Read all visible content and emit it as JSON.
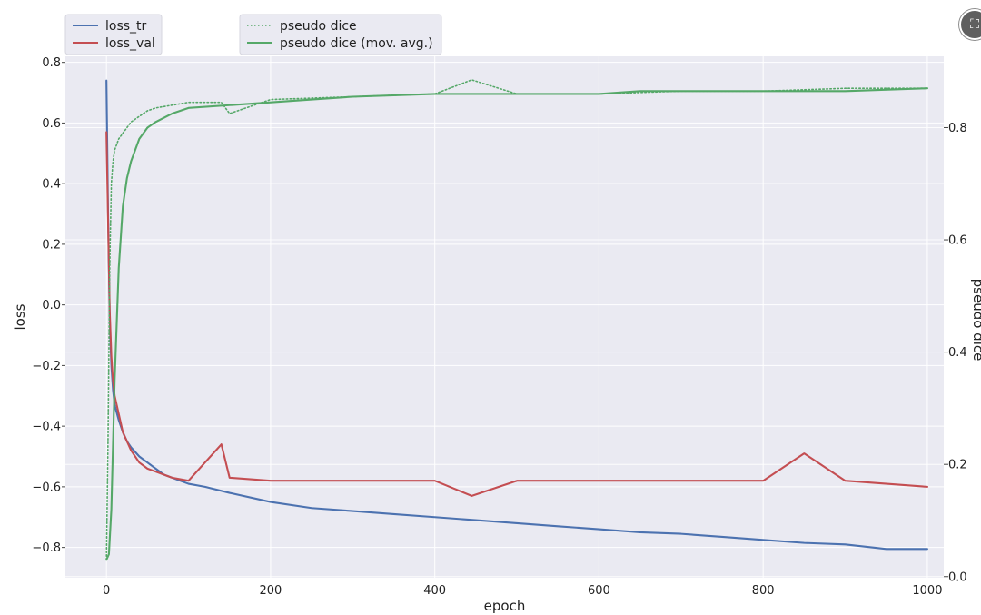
{
  "chart_data": {
    "type": "line",
    "title": "",
    "xlabel": "epoch",
    "ylabel_left": "loss",
    "ylabel_right": "pseudo dice",
    "xlim": [
      -50,
      1020
    ],
    "ylim_left": [
      -0.9,
      0.82
    ],
    "ylim_right": [
      -0.002,
      0.927
    ],
    "grid": true,
    "xticks": [
      0,
      200,
      400,
      600,
      800,
      1000
    ],
    "xtick_labels": [
      "0",
      "200",
      "400",
      "600",
      "800",
      "1000"
    ],
    "yticks_left": [
      0.8,
      0.6,
      0.4,
      0.2,
      0.0,
      -0.2,
      -0.4,
      -0.6,
      -0.8
    ],
    "ytick_labels_left": [
      "0.8",
      "0.6",
      "0.4",
      "0.2",
      "0.0",
      "−0.2",
      "−0.4",
      "−0.6",
      "−0.8"
    ],
    "yticks_right": [
      0.8,
      0.6,
      0.4,
      0.2,
      0.0
    ],
    "ytick_labels_right": [
      "0.8",
      "0.6",
      "0.4",
      "0.2",
      "0.0"
    ],
    "legends": [
      {
        "placement": "top-left",
        "entries": [
          {
            "label": "loss_tr",
            "color": "#4c72b0",
            "style": "solid"
          },
          {
            "label": "loss_val",
            "color": "#c44e52",
            "style": "solid"
          }
        ]
      },
      {
        "placement": "top-center-left",
        "entries": [
          {
            "label": "pseudo dice",
            "color": "#55a868",
            "style": "dotted"
          },
          {
            "label": "pseudo dice (mov. avg.)",
            "color": "#55a868",
            "style": "solid"
          }
        ]
      }
    ],
    "series": [
      {
        "name": "loss_tr",
        "axis": "left",
        "color": "#4c72b0",
        "style": "solid",
        "x": [
          0,
          2,
          4,
          6,
          8,
          10,
          15,
          20,
          25,
          30,
          40,
          50,
          60,
          70,
          80,
          100,
          120,
          150,
          200,
          250,
          300,
          350,
          400,
          450,
          500,
          550,
          600,
          650,
          700,
          750,
          800,
          850,
          900,
          950,
          1000
        ],
        "y": [
          0.74,
          0.3,
          -0.05,
          -0.2,
          -0.28,
          -0.33,
          -0.38,
          -0.42,
          -0.45,
          -0.47,
          -0.5,
          -0.52,
          -0.54,
          -0.56,
          -0.57,
          -0.59,
          -0.6,
          -0.62,
          -0.65,
          -0.67,
          -0.68,
          -0.69,
          -0.7,
          -0.71,
          -0.72,
          -0.73,
          -0.74,
          -0.75,
          -0.755,
          -0.765,
          -0.775,
          -0.785,
          -0.79,
          -0.805,
          -0.805
        ]
      },
      {
        "name": "loss_val",
        "axis": "left",
        "color": "#c44e52",
        "style": "solid",
        "x": [
          0,
          2,
          4,
          6,
          8,
          10,
          15,
          20,
          25,
          30,
          40,
          50,
          60,
          70,
          80,
          100,
          140,
          150,
          200,
          300,
          400,
          445,
          500,
          600,
          700,
          800,
          850,
          900,
          1000
        ],
        "y": [
          0.57,
          0.28,
          -0.02,
          -0.17,
          -0.25,
          -0.3,
          -0.36,
          -0.42,
          -0.45,
          -0.48,
          -0.52,
          -0.54,
          -0.55,
          -0.56,
          -0.57,
          -0.58,
          -0.46,
          -0.57,
          -0.58,
          -0.58,
          -0.58,
          -0.63,
          -0.58,
          -0.58,
          -0.58,
          -0.58,
          -0.49,
          -0.58,
          -0.6
        ]
      },
      {
        "name": "pseudo dice",
        "axis": "right",
        "color": "#55a868",
        "style": "dotted",
        "x": [
          0,
          2,
          4,
          6,
          8,
          10,
          15,
          20,
          25,
          30,
          40,
          50,
          60,
          80,
          100,
          140,
          150,
          200,
          300,
          400,
          445,
          500,
          600,
          700,
          800,
          900,
          1000
        ],
        "y": [
          0.03,
          0.25,
          0.55,
          0.7,
          0.74,
          0.76,
          0.78,
          0.79,
          0.8,
          0.81,
          0.82,
          0.83,
          0.835,
          0.84,
          0.845,
          0.845,
          0.825,
          0.85,
          0.855,
          0.86,
          0.885,
          0.86,
          0.86,
          0.865,
          0.865,
          0.87,
          0.87
        ]
      },
      {
        "name": "pseudo dice (mov. avg.)",
        "axis": "right",
        "color": "#55a868",
        "style": "solid",
        "x": [
          0,
          3,
          6,
          10,
          15,
          20,
          25,
          30,
          40,
          50,
          60,
          80,
          100,
          150,
          200,
          250,
          300,
          400,
          500,
          600,
          650,
          700,
          750,
          800,
          900,
          1000
        ],
        "y": [
          0.03,
          0.04,
          0.12,
          0.35,
          0.55,
          0.66,
          0.71,
          0.74,
          0.78,
          0.8,
          0.81,
          0.825,
          0.835,
          0.84,
          0.845,
          0.85,
          0.855,
          0.86,
          0.86,
          0.86,
          0.865,
          0.865,
          0.865,
          0.865,
          0.865,
          0.87
        ]
      }
    ]
  },
  "ui": {
    "corner_button_icon": "⛶"
  }
}
